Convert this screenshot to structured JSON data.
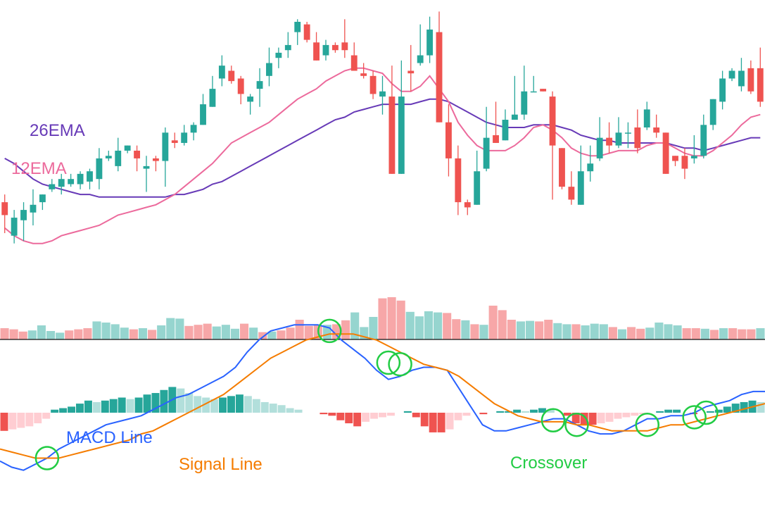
{
  "labels": {
    "ema26": "26EMA",
    "ema12": "12EMA",
    "macd_line": "MACD Line",
    "signal_line": "Signal Line",
    "crossover": "Crossover"
  },
  "colors": {
    "up": "#26a69a",
    "down": "#ef5350",
    "ema26": "#673ab7",
    "ema12": "#ec6a9c",
    "macd": "#2962ff",
    "signal": "#f57c00",
    "crossover": "#22cc44",
    "vol_up": "#96d5cf",
    "vol_down": "#f7a7a8",
    "hist_up_strong": "#26a69a",
    "hist_up_weak": "#b2dfdb",
    "hist_down_strong": "#ef5350",
    "hist_down_weak": "#ffcdd2"
  },
  "chart_data": [
    {
      "type": "candlestick",
      "ohlc": [
        [
          55,
          50,
          58,
          43
        ],
        [
          42,
          49,
          52,
          39
        ],
        [
          48,
          52,
          55,
          40
        ],
        [
          51,
          54,
          60,
          46
        ],
        [
          55,
          58,
          58,
          52
        ],
        [
          60,
          62,
          64,
          59
        ],
        [
          61,
          64,
          66,
          58
        ],
        [
          62,
          64,
          66,
          61
        ],
        [
          62,
          66,
          67,
          60
        ],
        [
          63,
          67,
          68,
          60
        ],
        [
          64,
          72,
          76,
          60
        ],
        [
          72,
          73,
          75,
          71
        ],
        [
          69,
          75,
          80,
          67
        ],
        [
          75,
          77,
          77,
          74
        ],
        [
          75,
          72,
          77,
          67
        ],
        [
          68,
          69,
          73,
          59
        ],
        [
          72,
          71,
          73,
          67
        ],
        [
          71,
          82,
          84,
          61
        ],
        [
          79,
          78,
          82,
          76
        ],
        [
          78,
          82,
          85,
          77
        ],
        [
          82,
          85,
          86,
          79
        ],
        [
          85,
          93,
          97,
          85
        ],
        [
          92,
          99,
          104,
          92
        ],
        [
          103,
          108,
          112,
          100
        ],
        [
          106,
          102,
          108,
          101
        ],
        [
          103,
          97,
          104,
          93
        ],
        [
          94,
          96,
          97,
          89
        ],
        [
          99,
          102,
          107,
          92
        ],
        [
          104,
          109,
          115,
          100
        ],
        [
          111,
          113,
          115,
          107
        ],
        [
          114,
          116,
          121,
          111
        ],
        [
          121,
          125,
          126,
          116
        ],
        [
          124,
          118,
          125,
          117
        ],
        [
          117,
          110,
          121,
          110
        ],
        [
          112,
          116,
          118,
          110
        ],
        [
          116,
          114,
          117,
          113
        ],
        [
          117,
          114,
          126,
          111
        ],
        [
          112,
          106,
          117,
          108
        ],
        [
          105,
          104,
          109,
          103
        ],
        [
          104,
          97,
          106,
          95
        ],
        [
          96,
          98,
          104,
          89
        ],
        [
          96,
          66,
          108,
          66
        ],
        [
          66,
          96,
          110,
          66
        ],
        [
          106,
          105,
          116,
          98
        ],
        [
          109,
          112,
          124,
          108
        ],
        [
          112,
          122,
          127,
          109
        ],
        [
          121,
          86,
          129,
          86
        ],
        [
          86,
          72,
          93,
          65
        ],
        [
          72,
          55,
          77,
          50
        ],
        [
          55,
          53,
          56,
          50
        ],
        [
          54,
          67,
          75,
          56
        ],
        [
          68,
          80,
          92,
          67
        ],
        [
          81,
          78,
          94,
          79
        ],
        [
          79,
          87,
          91,
          82
        ],
        [
          87,
          89,
          104,
          87
        ],
        [
          89,
          98,
          108,
          87
        ],
        [
          98,
          98,
          104,
          99
        ],
        [
          99,
          98,
          99,
          99
        ],
        [
          96,
          77,
          98,
          56
        ],
        [
          76,
          61,
          76,
          60
        ],
        [
          61,
          56,
          67,
          54
        ],
        [
          54,
          67,
          77,
          54
        ],
        [
          67,
          70,
          77,
          63
        ],
        [
          72,
          80,
          88,
          71
        ],
        [
          80,
          77,
          86,
          74
        ],
        [
          77,
          82,
          88,
          76
        ],
        [
          82,
          82,
          86,
          76
        ],
        [
          84,
          76,
          91,
          74
        ],
        [
          84,
          91,
          94,
          83
        ],
        [
          84,
          82,
          89,
          80
        ],
        [
          82,
          66,
          82,
          69
        ],
        [
          73,
          71,
          72,
          69
        ],
        [
          73,
          68,
          76,
          64
        ],
        [
          72,
          73,
          81,
          70
        ],
        [
          73,
          85,
          89,
          72
        ],
        [
          85,
          95,
          95,
          83
        ],
        [
          94,
          103,
          106,
          91
        ],
        [
          103,
          106,
          107,
          102
        ],
        [
          100,
          106,
          111,
          98
        ],
        [
          107,
          98,
          110,
          97
        ],
        [
          107,
          94,
          115,
          92
        ]
      ],
      "volume": [
        [
          20,
          "down"
        ],
        [
          18,
          "down"
        ],
        [
          14,
          "down"
        ],
        [
          16,
          "up"
        ],
        [
          25,
          "up"
        ],
        [
          15,
          "up"
        ],
        [
          12,
          "up"
        ],
        [
          16,
          "down"
        ],
        [
          18,
          "down"
        ],
        [
          20,
          "down"
        ],
        [
          32,
          "up"
        ],
        [
          30,
          "up"
        ],
        [
          27,
          "up"
        ],
        [
          21,
          "up"
        ],
        [
          18,
          "down"
        ],
        [
          20,
          "up"
        ],
        [
          17,
          "down"
        ],
        [
          25,
          "up"
        ],
        [
          38,
          "up"
        ],
        [
          37,
          "up"
        ],
        [
          24,
          "down"
        ],
        [
          26,
          "down"
        ],
        [
          28,
          "down"
        ],
        [
          23,
          "up"
        ],
        [
          26,
          "up"
        ],
        [
          19,
          "up"
        ],
        [
          28,
          "down"
        ],
        [
          21,
          "up"
        ],
        [
          13,
          "down"
        ],
        [
          14,
          "up"
        ],
        [
          16,
          "down"
        ],
        [
          21,
          "down"
        ],
        [
          35,
          "down"
        ],
        [
          24,
          "down"
        ],
        [
          25,
          "down"
        ],
        [
          26,
          "up"
        ],
        [
          27,
          "down"
        ],
        [
          34,
          "down"
        ],
        [
          48,
          "up"
        ],
        [
          22,
          "up"
        ],
        [
          40,
          "up"
        ],
        [
          73,
          "down"
        ],
        [
          75,
          "down"
        ],
        [
          69,
          "down"
        ],
        [
          49,
          "up"
        ],
        [
          41,
          "up"
        ],
        [
          50,
          "up"
        ],
        [
          48,
          "up"
        ],
        [
          47,
          "down"
        ],
        [
          36,
          "down"
        ],
        [
          34,
          "up"
        ],
        [
          27,
          "down"
        ],
        [
          26,
          "up"
        ],
        [
          60,
          "down"
        ],
        [
          52,
          "down"
        ],
        [
          35,
          "down"
        ],
        [
          32,
          "up"
        ],
        [
          33,
          "up"
        ],
        [
          32,
          "down"
        ],
        [
          35,
          "down"
        ],
        [
          29,
          "up"
        ],
        [
          27,
          "up"
        ],
        [
          27,
          "down"
        ],
        [
          25,
          "up"
        ],
        [
          28,
          "up"
        ],
        [
          27,
          "up"
        ],
        [
          22,
          "down"
        ],
        [
          18,
          "up"
        ],
        [
          22,
          "down"
        ],
        [
          19,
          "down"
        ],
        [
          21,
          "up"
        ],
        [
          30,
          "up"
        ],
        [
          27,
          "up"
        ],
        [
          25,
          "up"
        ],
        [
          20,
          "down"
        ],
        [
          20,
          "down"
        ],
        [
          19,
          "up"
        ],
        [
          17,
          "down"
        ],
        [
          20,
          "up"
        ],
        [
          20,
          "down"
        ],
        [
          18,
          "down"
        ],
        [
          18,
          "down"
        ],
        [
          20,
          "up"
        ]
      ],
      "ema12": [
        45,
        42,
        40,
        39,
        39,
        40,
        42,
        43,
        44,
        45,
        46,
        48,
        50,
        51,
        52,
        53,
        54,
        56,
        58,
        61,
        64,
        67,
        70,
        74,
        78,
        80,
        82,
        84,
        86,
        89,
        92,
        95,
        97,
        99,
        102,
        104,
        106,
        107,
        107,
        106,
        105,
        101,
        98,
        98,
        100,
        104,
        99,
        94,
        86,
        81,
        77,
        75,
        75,
        75,
        77,
        80,
        84,
        85,
        83,
        80,
        76,
        74,
        73,
        73,
        74,
        75,
        75,
        75,
        77,
        78,
        78,
        76,
        74,
        73,
        73,
        75,
        78,
        81,
        85,
        88,
        89
      ],
      "ema26": [
        72,
        70,
        67,
        64,
        62,
        61,
        60,
        59,
        58,
        58,
        57,
        57,
        57,
        57,
        57,
        57,
        57,
        57,
        58,
        58,
        59,
        60,
        62,
        63,
        65,
        67,
        69,
        71,
        73,
        75,
        77,
        79,
        81,
        83,
        85,
        87,
        88,
        90,
        91,
        92,
        93,
        93,
        93,
        93,
        94,
        95,
        95,
        94,
        92,
        90,
        88,
        86,
        85,
        84,
        84,
        84,
        85,
        85,
        85,
        84,
        83,
        81,
        80,
        79,
        79,
        78,
        78,
        78,
        78,
        78,
        78,
        77,
        76,
        76,
        75,
        76,
        77,
        78,
        79,
        80,
        80
      ]
    },
    {
      "type": "line",
      "series": [
        {
          "name": "MACD Line",
          "values": [
            -1.6,
            -1.8,
            -1.9,
            -1.7,
            -1.5,
            -1.2,
            -1.0,
            -0.8,
            -0.6,
            -0.4,
            -0.3,
            -0.2,
            -0.1,
            0.1,
            0.3,
            0.5,
            0.6,
            0.8,
            1.0,
            1.2,
            1.5,
            2.0,
            2.4,
            2.7,
            2.8,
            2.9,
            2.9,
            2.9,
            2.8,
            2.4,
            2.1,
            1.8,
            1.4,
            1.1,
            1.2,
            1.4,
            1.5,
            1.5,
            1.4,
            0.8,
            0.2,
            -0.4,
            -0.6,
            -0.6,
            -0.5,
            -0.4,
            -0.3,
            -0.2,
            -0.2,
            -0.4,
            -0.6,
            -0.7,
            -0.7,
            -0.6,
            -0.4,
            -0.2,
            -0.2,
            -0.1,
            -0.1,
            0.0,
            0.2,
            0.3,
            0.4,
            0.6,
            0.7,
            0.7
          ]
        },
        {
          "name": "Signal Line",
          "values": [
            -1.2,
            -1.3,
            -1.4,
            -1.5,
            -1.5,
            -1.5,
            -1.4,
            -1.3,
            -1.2,
            -1.1,
            -1.0,
            -0.9,
            -0.7,
            -0.6,
            -0.4,
            -0.2,
            0.0,
            0.2,
            0.4,
            0.6,
            0.9,
            1.2,
            1.5,
            1.8,
            2.0,
            2.2,
            2.4,
            2.5,
            2.6,
            2.6,
            2.6,
            2.5,
            2.4,
            2.2,
            2.0,
            1.8,
            1.6,
            1.5,
            1.4,
            1.2,
            0.9,
            0.6,
            0.3,
            0.1,
            -0.1,
            -0.2,
            -0.3,
            -0.3,
            -0.3,
            -0.4,
            -0.4,
            -0.5,
            -0.6,
            -0.6,
            -0.6,
            -0.6,
            -0.5,
            -0.4,
            -0.4,
            -0.3,
            -0.2,
            -0.1,
            0.0,
            0.1,
            0.2,
            0.3
          ]
        }
      ],
      "histogram": [
        -0.6,
        -0.55,
        -0.5,
        -0.45,
        -0.35,
        -0.2,
        0.1,
        0.15,
        0.2,
        0.3,
        0.4,
        0.35,
        0.4,
        0.45,
        0.5,
        0.45,
        0.5,
        0.6,
        0.65,
        0.75,
        0.85,
        0.8,
        0.65,
        0.55,
        0.5,
        0.45,
        0.5,
        0.55,
        0.6,
        0.55,
        0.45,
        0.35,
        0.3,
        0.25,
        0.15,
        0.1,
        0.0,
        0.0,
        -0.05,
        -0.1,
        -0.25,
        -0.35,
        -0.45,
        -0.3,
        -0.2,
        -0.15,
        -0.1,
        0.0,
        0.05,
        -0.15,
        -0.45,
        -0.65,
        -0.65,
        -0.55,
        -0.25,
        -0.1,
        0.0,
        -0.05,
        0.0,
        0.05,
        0.05,
        0.1,
        0.05,
        0.1,
        0.15,
        0.1,
        0.0,
        -0.1,
        -0.35,
        -0.4,
        -0.4,
        -0.35,
        -0.3,
        -0.2,
        -0.15,
        -0.1,
        -0.05,
        0.0,
        0.05,
        0.1,
        0.1,
        0.0,
        -0.05,
        0.0,
        0.05,
        0.1,
        0.2,
        0.3,
        0.35,
        0.4,
        0.35
      ],
      "crossovers": [
        4,
        28,
        33,
        34,
        47,
        49,
        55,
        59,
        60
      ]
    }
  ]
}
